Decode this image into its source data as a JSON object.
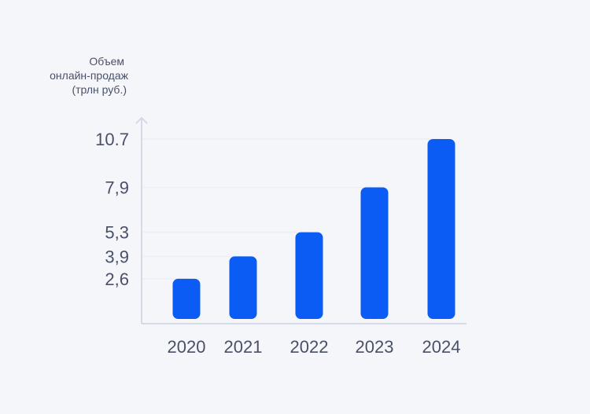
{
  "chart_data": {
    "type": "bar",
    "title": "",
    "ylabel_lines": [
      "Объем",
      "онлайн-продаж",
      "(трлн руб.)"
    ],
    "xlabel": "",
    "categories": [
      "2020",
      "2021",
      "2022",
      "2023",
      "2024"
    ],
    "values": [
      2.6,
      3.9,
      5.3,
      7.9,
      10.7
    ],
    "ytick_labels": [
      "2,6",
      "3,9",
      "5,3",
      "7,9",
      "10.7"
    ],
    "ylim": [
      0,
      10.7
    ],
    "grid": "horizontal reference lines at each value",
    "bar_color": "#0a5cf5",
    "axis_color": "#d6d9e8",
    "gridline_color": "#eceef6"
  }
}
